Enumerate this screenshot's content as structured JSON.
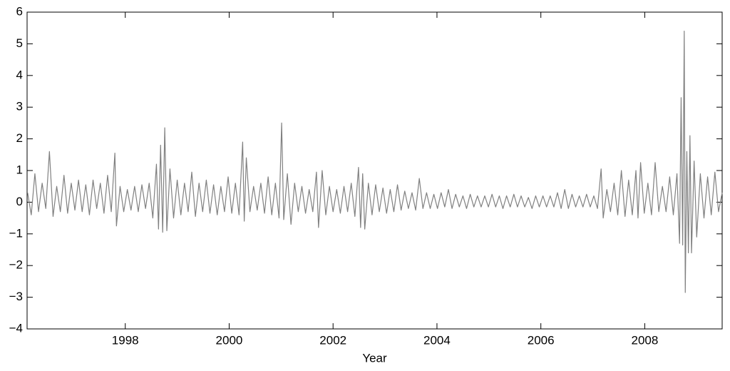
{
  "chart_data": {
    "type": "line",
    "xlabel": "Year",
    "xlim": [
      1996.11,
      2009.49
    ],
    "xticks": [
      1998,
      2000,
      2002,
      2004,
      2006,
      2008
    ],
    "ylim": [
      -4,
      6
    ],
    "yticks": [
      {
        "value": -4,
        "label": "−4"
      },
      {
        "value": -3,
        "label": "−3"
      },
      {
        "value": -2,
        "label": "−2"
      },
      {
        "value": -1,
        "label": "−1"
      },
      0,
      1,
      2,
      3,
      4,
      5,
      6
    ],
    "grid": false,
    "series": [
      {
        "color": "#808080",
        "x": [
          1996.12,
          1996.19,
          1996.26,
          1996.33,
          1996.4,
          1996.47,
          1996.54,
          1996.61,
          1996.68,
          1996.75,
          1996.82,
          1996.89,
          1996.96,
          1997.03,
          1997.1,
          1997.17,
          1997.24,
          1997.31,
          1997.38,
          1997.45,
          1997.52,
          1997.59,
          1997.66,
          1997.73,
          1997.8,
          1997.83,
          1997.9,
          1997.97,
          1998.04,
          1998.11,
          1998.18,
          1998.25,
          1998.32,
          1998.39,
          1998.46,
          1998.53,
          1998.6,
          1998.64,
          1998.68,
          1998.72,
          1998.76,
          1998.8,
          1998.86,
          1998.93,
          1999.0,
          1999.07,
          1999.14,
          1999.21,
          1999.28,
          1999.35,
          1999.42,
          1999.49,
          1999.56,
          1999.63,
          1999.7,
          1999.77,
          1999.84,
          1999.91,
          1999.98,
          2000.05,
          2000.12,
          2000.19,
          2000.26,
          2000.29,
          2000.33,
          2000.4,
          2000.47,
          2000.54,
          2000.61,
          2000.68,
          2000.75,
          2000.82,
          2000.89,
          2000.96,
          2001.01,
          2001.05,
          2001.12,
          2001.19,
          2001.26,
          2001.33,
          2001.4,
          2001.47,
          2001.54,
          2001.61,
          2001.68,
          2001.72,
          2001.79,
          2001.86,
          2001.93,
          2002.0,
          2002.07,
          2002.14,
          2002.21,
          2002.28,
          2002.35,
          2002.42,
          2002.49,
          2002.53,
          2002.57,
          2002.61,
          2002.68,
          2002.75,
          2002.82,
          2002.89,
          2002.96,
          2003.03,
          2003.1,
          2003.17,
          2003.24,
          2003.31,
          2003.38,
          2003.45,
          2003.52,
          2003.59,
          2003.66,
          2003.73,
          2003.8,
          2003.87,
          2003.94,
          2004.01,
          2004.08,
          2004.15,
          2004.22,
          2004.29,
          2004.36,
          2004.43,
          2004.5,
          2004.57,
          2004.64,
          2004.71,
          2004.78,
          2004.85,
          2004.92,
          2004.99,
          2005.06,
          2005.13,
          2005.2,
          2005.27,
          2005.34,
          2005.41,
          2005.48,
          2005.55,
          2005.62,
          2005.69,
          2005.76,
          2005.83,
          2005.9,
          2005.97,
          2006.04,
          2006.11,
          2006.18,
          2006.25,
          2006.32,
          2006.39,
          2006.46,
          2006.53,
          2006.6,
          2006.67,
          2006.74,
          2006.81,
          2006.88,
          2006.95,
          2007.02,
          2007.09,
          2007.16,
          2007.2,
          2007.27,
          2007.34,
          2007.41,
          2007.48,
          2007.55,
          2007.62,
          2007.69,
          2007.76,
          2007.83,
          2007.87,
          2007.92,
          2007.99,
          2008.06,
          2008.13,
          2008.2,
          2008.27,
          2008.34,
          2008.41,
          2008.48,
          2008.55,
          2008.62,
          2008.67,
          2008.7,
          2008.73,
          2008.76,
          2008.78,
          2008.81,
          2008.84,
          2008.87,
          2008.9,
          2008.95,
          2009.0,
          2009.07,
          2009.14,
          2009.21,
          2009.28,
          2009.35,
          2009.42,
          2009.49
        ],
        "values": [
          0.3,
          -0.4,
          0.9,
          -0.3,
          0.6,
          -0.2,
          1.6,
          -0.45,
          0.5,
          -0.3,
          0.85,
          -0.35,
          0.6,
          -0.25,
          0.7,
          -0.3,
          0.55,
          -0.4,
          0.7,
          -0.2,
          0.6,
          -0.35,
          0.85,
          -0.3,
          1.55,
          -0.75,
          0.5,
          -0.3,
          0.4,
          -0.25,
          0.5,
          -0.3,
          0.55,
          -0.2,
          0.6,
          -0.5,
          1.2,
          -0.85,
          1.8,
          -0.95,
          2.35,
          -0.9,
          1.05,
          -0.5,
          0.7,
          -0.4,
          0.6,
          -0.3,
          0.95,
          -0.45,
          0.6,
          -0.3,
          0.7,
          -0.35,
          0.55,
          -0.4,
          0.5,
          -0.3,
          0.8,
          -0.35,
          0.6,
          -0.4,
          1.9,
          -0.6,
          1.4,
          -0.3,
          0.5,
          -0.25,
          0.6,
          -0.35,
          0.8,
          -0.4,
          0.6,
          -0.5,
          2.5,
          -0.55,
          0.9,
          -0.7,
          0.6,
          -0.3,
          0.5,
          -0.35,
          0.4,
          -0.3,
          0.95,
          -0.8,
          1.0,
          -0.4,
          0.5,
          -0.3,
          0.4,
          -0.35,
          0.5,
          -0.3,
          0.6,
          -0.45,
          1.1,
          -0.8,
          0.9,
          -0.85,
          0.6,
          -0.4,
          0.55,
          -0.3,
          0.45,
          -0.35,
          0.4,
          -0.3,
          0.55,
          -0.25,
          0.35,
          -0.2,
          0.3,
          -0.25,
          0.75,
          -0.2,
          0.3,
          -0.2,
          0.25,
          -0.2,
          0.3,
          -0.15,
          0.4,
          -0.2,
          0.25,
          -0.15,
          0.2,
          -0.2,
          0.25,
          -0.15,
          0.2,
          -0.15,
          0.2,
          -0.15,
          0.25,
          -0.15,
          0.2,
          -0.2,
          0.2,
          -0.15,
          0.25,
          -0.15,
          0.2,
          -0.15,
          0.15,
          -0.2,
          0.2,
          -0.15,
          0.2,
          -0.15,
          0.2,
          -0.15,
          0.3,
          -0.2,
          0.4,
          -0.2,
          0.25,
          -0.15,
          0.2,
          -0.15,
          0.25,
          -0.15,
          0.2,
          -0.2,
          1.05,
          -0.5,
          0.4,
          -0.3,
          0.6,
          -0.4,
          1.0,
          -0.45,
          0.7,
          -0.4,
          1.0,
          -0.5,
          1.25,
          -0.35,
          0.6,
          -0.4,
          1.25,
          -0.3,
          0.5,
          -0.3,
          0.8,
          -0.4,
          0.9,
          -1.3,
          3.3,
          -1.35,
          5.4,
          -2.85,
          1.6,
          -1.6,
          2.1,
          -1.6,
          1.3,
          -1.1,
          0.9,
          -0.5,
          0.8,
          -0.4,
          0.95,
          -0.3,
          0.3
        ]
      }
    ]
  }
}
